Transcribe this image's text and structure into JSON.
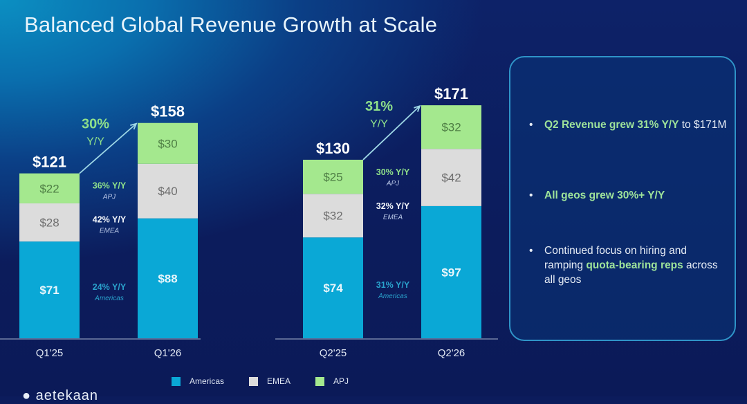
{
  "slide": {
    "title": "Balanced Global Revenue Growth at Scale",
    "logo_text": "aetekaan",
    "colors": {
      "americas": "#0aa8d6",
      "emea": "#dcdcdc",
      "apj": "#a4e88e",
      "growth_green": "#8fe08a",
      "card_border": "#2f94c8"
    }
  },
  "highlights": {
    "bullets": [
      {
        "parts": [
          {
            "text": "Q2 Revenue grew ",
            "hl": true
          },
          {
            "text": "31% Y/Y",
            "hl": true
          },
          {
            "text": " to $171M",
            "hl": false
          }
        ]
      },
      {
        "parts": [
          {
            "text": "All geos grew 30%+ Y/Y",
            "hl": true
          }
        ]
      },
      {
        "parts": [
          {
            "text": "Continued focus on hiring and ramping ",
            "hl": false
          },
          {
            "text": "quota-bearing reps",
            "hl": true
          },
          {
            "text": " across all geos",
            "hl": false
          }
        ]
      }
    ]
  },
  "legend": [
    {
      "name": "Americas",
      "color": "#0aa8d6"
    },
    {
      "name": "EMEA",
      "color": "#dcdcdc"
    },
    {
      "name": "APJ",
      "color": "#a4e88e"
    }
  ],
  "chart_data": [
    {
      "type": "bar",
      "stacked": true,
      "title": "",
      "categories": [
        "Q1'25",
        "Q1'26"
      ],
      "series": [
        {
          "name": "Americas",
          "values": [
            71,
            88
          ]
        },
        {
          "name": "EMEA",
          "values": [
            28,
            40
          ]
        },
        {
          "name": "APJ",
          "values": [
            22,
            30
          ]
        }
      ],
      "totals": [
        "$121",
        "$158"
      ],
      "value_labels": {
        "Americas": [
          "$71",
          "$88"
        ],
        "EMEA": [
          "$28",
          "$40"
        ],
        "APJ": [
          "$22",
          "$30"
        ]
      },
      "total_growth": {
        "pct": "30%",
        "label": "Y/Y"
      },
      "segment_growth": [
        {
          "geo": "APJ",
          "pct": "36% Y/Y"
        },
        {
          "geo": "EMEA",
          "pct": "42% Y/Y"
        },
        {
          "geo": "Americas",
          "pct": "24% Y/Y"
        }
      ],
      "ylim": [
        0,
        180
      ],
      "grid": false
    },
    {
      "type": "bar",
      "stacked": true,
      "title": "",
      "categories": [
        "Q2'25",
        "Q2'26"
      ],
      "series": [
        {
          "name": "Americas",
          "values": [
            74,
            97
          ]
        },
        {
          "name": "EMEA",
          "values": [
            32,
            42
          ]
        },
        {
          "name": "APJ",
          "values": [
            25,
            32
          ]
        }
      ],
      "totals": [
        "$130",
        "$171"
      ],
      "value_labels": {
        "Americas": [
          "$74",
          "$97"
        ],
        "EMEA": [
          "$32",
          "$42"
        ],
        "APJ": [
          "$25",
          "$32"
        ]
      },
      "total_growth": {
        "pct": "31%",
        "label": "Y/Y"
      },
      "segment_growth": [
        {
          "geo": "APJ",
          "pct": "30% Y/Y"
        },
        {
          "geo": "EMEA",
          "pct": "32% Y/Y"
        },
        {
          "geo": "Americas",
          "pct": "31% Y/Y"
        }
      ],
      "ylim": [
        0,
        180
      ],
      "grid": false
    }
  ]
}
